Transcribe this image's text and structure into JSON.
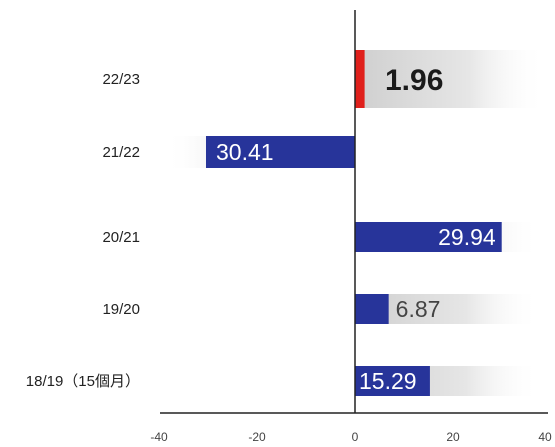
{
  "chart_data": {
    "type": "bar",
    "orientation": "horizontal",
    "categories": [
      "22/23",
      "21/22",
      "20/21",
      "19/20",
      "18/19（15個月）"
    ],
    "values": [
      1.96,
      -30.41,
      29.94,
      6.87,
      15.29
    ],
    "value_labels": [
      "1.96",
      "30.41",
      "29.94",
      "6.87",
      "15.29"
    ],
    "highlight_index": 0,
    "xlim": [
      -40,
      40
    ],
    "xticks": [
      "-40",
      "-20",
      "0",
      "20",
      "40"
    ],
    "grid": false,
    "colors": {
      "bar": "#27349a",
      "highlight_bar": "#e0201c",
      "label_inside": "#ffffff",
      "label_outside": "#444444",
      "highlight_label": "#1a1a1a",
      "axis": "#222222",
      "band": "#d6d6d6"
    }
  }
}
